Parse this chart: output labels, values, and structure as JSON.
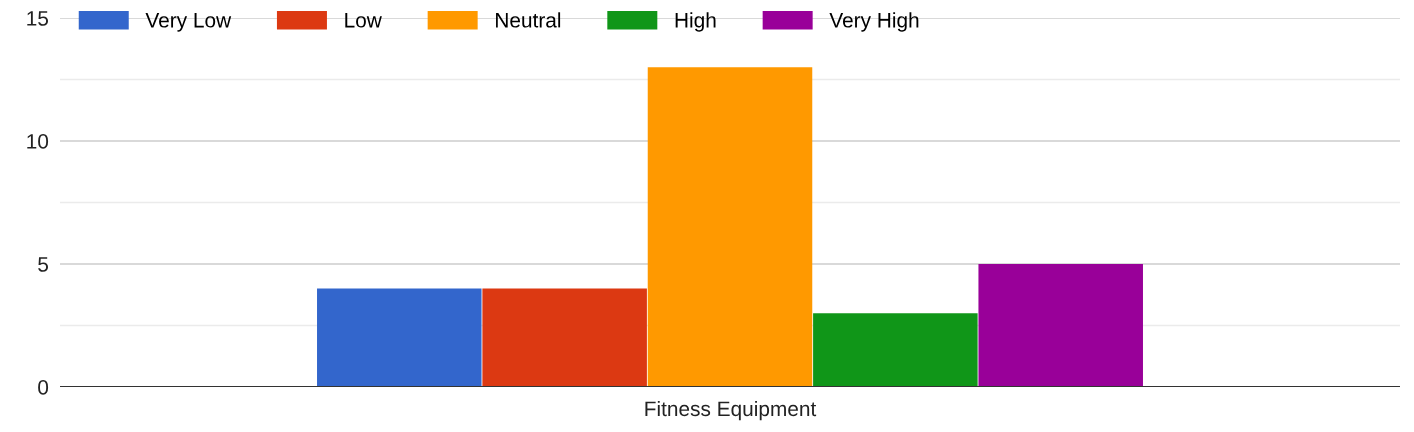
{
  "chart_data": {
    "type": "bar",
    "categories": [
      "Fitness Equipment"
    ],
    "series": [
      {
        "name": "Very Low",
        "color": "#3366cc",
        "values": [
          4
        ]
      },
      {
        "name": "Low",
        "color": "#dc3912",
        "values": [
          4
        ]
      },
      {
        "name": "Neutral",
        "color": "#ff9900",
        "values": [
          13
        ]
      },
      {
        "name": "High",
        "color": "#109618",
        "values": [
          3
        ]
      },
      {
        "name": "Very High",
        "color": "#990099",
        "values": [
          5
        ]
      }
    ],
    "ylim": [
      0,
      15
    ],
    "yticks": [
      0,
      {
        "value": 2.5,
        "label": null
      },
      5,
      {
        "value": 7.5,
        "label": null
      },
      10,
      {
        "value": 12.5,
        "label": null
      },
      15
    ],
    "grid": "y",
    "legend": "top left"
  }
}
